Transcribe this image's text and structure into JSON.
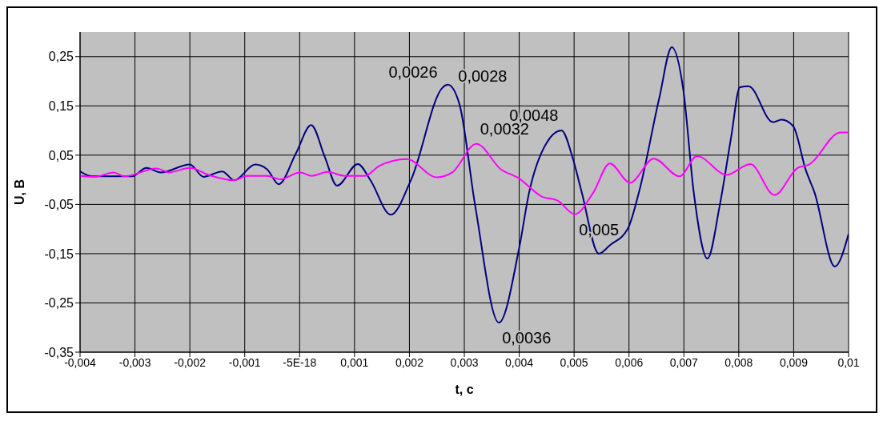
{
  "chart_data": {
    "type": "line",
    "xlabel": "t, c",
    "ylabel": "U, B",
    "xlim": [
      -0.004,
      0.01
    ],
    "xticks": [
      {
        "value": -0.004,
        "label": "-0,004"
      },
      {
        "value": -0.003,
        "label": "-0,003"
      },
      {
        "value": -0.002,
        "label": "-0,002"
      },
      {
        "value": -0.001,
        "label": "-0,001"
      },
      {
        "value": -5e-18,
        "label": "-5E-18"
      },
      {
        "value": 0.001,
        "label": "0,001"
      },
      {
        "value": 0.002,
        "label": "0,002"
      },
      {
        "value": 0.003,
        "label": "0,003"
      },
      {
        "value": 0.004,
        "label": "0,004"
      },
      {
        "value": 0.005,
        "label": "0,005"
      },
      {
        "value": 0.006,
        "label": "0,006"
      },
      {
        "value": 0.007,
        "label": "0,007"
      },
      {
        "value": 0.008,
        "label": "0,008"
      },
      {
        "value": 0.009,
        "label": "0,009"
      },
      {
        "value": 0.01,
        "label": "0,01"
      }
    ],
    "ylim": [
      -0.35,
      0.3
    ],
    "yticks": [
      {
        "value": -0.35,
        "label": "-0,35"
      },
      {
        "value": -0.25,
        "label": "-0,25"
      },
      {
        "value": -0.15,
        "label": "-0,15"
      },
      {
        "value": -0.05,
        "label": "-0,05"
      },
      {
        "value": 0.05,
        "label": "0,05"
      },
      {
        "value": 0.15,
        "label": "0,15"
      },
      {
        "value": 0.25,
        "label": "0,25"
      }
    ],
    "grid": true,
    "marker": "none",
    "line_style": "solid",
    "series": [
      {
        "color": "#000080",
        "x": [
          -0.004,
          -0.00379,
          -0.00305,
          -0.00279,
          -0.00253,
          -0.002,
          -0.00175,
          -0.00141,
          -0.00119,
          -0.00081,
          -0.00059,
          -0.00038,
          -7e-05,
          0.00021,
          0.00046,
          0.00068,
          0.00106,
          0.00129,
          0.00166,
          0.00203,
          0.00261,
          0.0027,
          0.00291,
          0.0032,
          0.00363,
          0.004,
          0.00418,
          0.0045,
          0.00477,
          0.00498,
          0.00514,
          0.00545,
          0.00565,
          0.00598,
          0.00618,
          0.00655,
          0.00678,
          0.00699,
          0.00718,
          0.00743,
          0.00765,
          0.00786,
          0.00802,
          0.00818,
          0.00862,
          0.00878,
          0.00899,
          0.00922,
          0.00938,
          0.00975,
          0.01
        ],
        "values": [
          0.017,
          0.007,
          0.007,
          0.024,
          0.015,
          0.031,
          0.006,
          0.017,
          -0.001,
          0.031,
          0.021,
          -0.009,
          0.053,
          0.111,
          0.046,
          -0.012,
          0.032,
          -0.001,
          -0.071,
          0,
          0.188,
          0.193,
          0.154,
          -0.054,
          -0.29,
          -0.138,
          -0.026,
          0.075,
          0.1,
          0.042,
          -0.026,
          -0.15,
          -0.133,
          -0.099,
          -0.026,
          0.165,
          0.269,
          0.182,
          -0.026,
          -0.16,
          -0.054,
          0.086,
          0.188,
          0.19,
          0.117,
          0.122,
          0.109,
          0.02,
          -0.026,
          -0.176,
          -0.11
        ]
      },
      {
        "color": "#ff00ff",
        "x": [
          -0.004,
          -0.00372,
          -0.00339,
          -0.00319,
          -0.00261,
          -0.00238,
          -0.002,
          -0.00164,
          -0.00119,
          -0.00096,
          -0.00059,
          -0.00035,
          1e-05,
          0.00022,
          0.00051,
          0.00082,
          0.00119,
          0.00145,
          0.00195,
          0.0025,
          0.00278,
          0.00322,
          0.00367,
          0.00398,
          0.00441,
          0.00471,
          0.00501,
          0.00535,
          0.00565,
          0.00602,
          0.00645,
          0.00692,
          0.00724,
          0.00778,
          0.00821,
          0.00865,
          0.00907,
          0.00928,
          0.00985,
          0.01
        ],
        "values": [
          0.008,
          0.006,
          0.015,
          0.007,
          0.023,
          0.015,
          0.024,
          0.009,
          -0.001,
          0.008,
          0.008,
          0.001,
          0.015,
          0.008,
          0.016,
          0.008,
          0.008,
          0.028,
          0.042,
          0.005,
          0.015,
          0.073,
          0.021,
          0.004,
          -0.034,
          -0.043,
          -0.07,
          -0.026,
          0.033,
          -0.006,
          0.043,
          0.007,
          0.048,
          0.01,
          0.032,
          -0.031,
          0.024,
          0.031,
          0.096,
          0.096
        ]
      }
    ],
    "annotations": [
      {
        "text": "0,0026",
        "x": 0.0026,
        "y": 0.188
      },
      {
        "text": "0,0028",
        "x": 0.0028,
        "y": 0.18
      },
      {
        "text": "0,0032",
        "x": 0.0032,
        "y": 0.073
      },
      {
        "text": "0,0036",
        "x": 0.0036,
        "y": -0.29
      },
      {
        "text": "0,0048",
        "x": 0.0048,
        "y": 0.1
      },
      {
        "text": "0,005",
        "x": 0.005,
        "y": -0.07
      }
    ]
  }
}
